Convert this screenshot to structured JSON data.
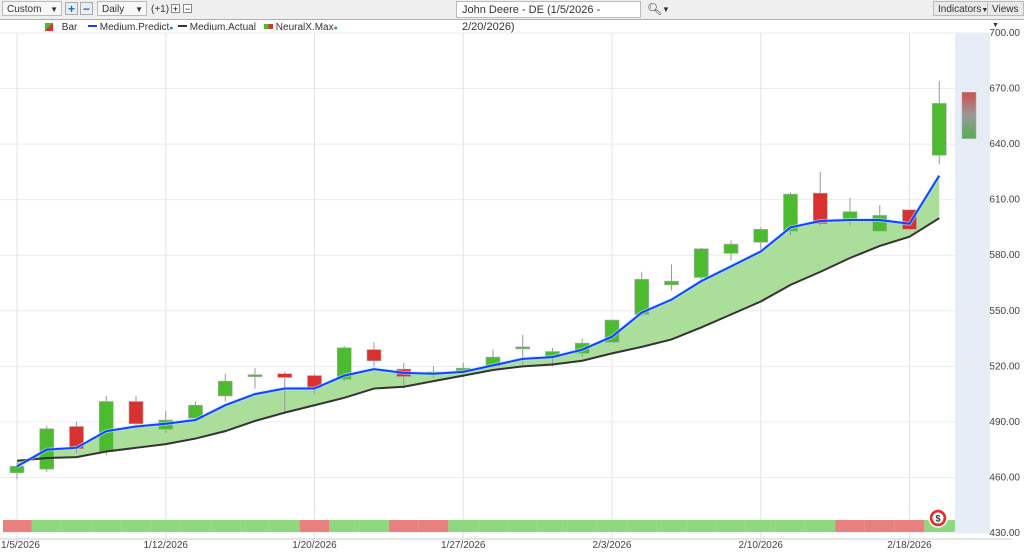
{
  "toolbar": {
    "range_select": "Custom",
    "interval_select": "Daily",
    "offset_label": "(+1)",
    "chart_title": "John Deere - DE (1/5/2026 - 2/20/2026)",
    "indicators_label": "Indicators",
    "views_label": "Views"
  },
  "legend": {
    "bar": "Bar",
    "predict": "Medium.Predict",
    "actual": "Medium.Actual",
    "neuralx": "NeuralX.Max"
  },
  "colors": {
    "up": "#4cbb30",
    "down": "#d93030",
    "predict": "#1e3cff",
    "actual": "#333333",
    "fill": "#a6dc96",
    "strip_green": "#90d880",
    "strip_red": "#e88080",
    "forecast_bg": "#e6edf6"
  },
  "chart_data": {
    "type": "candlestick",
    "title": "John Deere - DE (1/5/2026 - 2/20/2026)",
    "ylim": [
      430,
      700
    ],
    "yticks": [
      430,
      460,
      490,
      520,
      550,
      580,
      610,
      640,
      670,
      700
    ],
    "ytick_labels": [
      "430.00",
      "460.00",
      "490.00",
      "520.00",
      "550.00",
      "580.00",
      "610.00",
      "640.00",
      "670.00",
      "700.00"
    ],
    "xtick_labels": [
      {
        "label": "1/5/2026",
        "index": 0
      },
      {
        "label": "1/12/2026",
        "index": 5
      },
      {
        "label": "1/20/2026",
        "index": 10
      },
      {
        "label": "1/27/2026",
        "index": 15
      },
      {
        "label": "2/3/2026",
        "index": 20
      },
      {
        "label": "2/10/2026",
        "index": 25
      },
      {
        "label": "2/18/2026",
        "index": 30
      }
    ],
    "dates": [
      "1/5",
      "1/6",
      "1/7",
      "1/8",
      "1/9",
      "1/12",
      "1/13",
      "1/14",
      "1/15",
      "1/16",
      "1/20",
      "1/21",
      "1/22",
      "1/23",
      "1/26",
      "1/27",
      "1/28",
      "1/29",
      "1/30",
      "2/2",
      "2/3",
      "2/4",
      "2/5",
      "2/6",
      "2/9",
      "2/10",
      "2/11",
      "2/12",
      "2/13",
      "2/17",
      "2/18",
      "2/19"
    ],
    "ohlc": [
      [
        462.5,
        468,
        459,
        466
      ],
      [
        464.5,
        488,
        463,
        486.3
      ],
      [
        487.5,
        490,
        473,
        475.5
      ],
      [
        474,
        504,
        472,
        501
      ],
      [
        501,
        504,
        486,
        489
      ],
      [
        486,
        496,
        484,
        491
      ],
      [
        492,
        501,
        491,
        499
      ],
      [
        504,
        516,
        501,
        512
      ],
      [
        515,
        519,
        508,
        515.5
      ],
      [
        516,
        517,
        495,
        514
      ],
      [
        515,
        516,
        505,
        508.5
      ],
      [
        513,
        531,
        512,
        530
      ],
      [
        529,
        533,
        520,
        523
      ],
      [
        518.5,
        522,
        508,
        514.5
      ],
      [
        516.5,
        520,
        514,
        517
      ],
      [
        517.5,
        522,
        514,
        519
      ],
      [
        520,
        529,
        519,
        525
      ],
      [
        530,
        537,
        521,
        530.5
      ],
      [
        525,
        530,
        520,
        528
      ],
      [
        527,
        535,
        525,
        532.5
      ],
      [
        533,
        545,
        533,
        545
      ],
      [
        548,
        571,
        547,
        567
      ],
      [
        564,
        575,
        561,
        566
      ],
      [
        568,
        584,
        565,
        583.5
      ],
      [
        581,
        588,
        577,
        586
      ],
      [
        587,
        595,
        583,
        594
      ],
      [
        593,
        614,
        591,
        613
      ],
      [
        613.5,
        625,
        596,
        597
      ],
      [
        599.5,
        611,
        596,
        603.5
      ],
      [
        593,
        607,
        593,
        601.5
      ],
      [
        604.5,
        604.5,
        594,
        594
      ],
      [
        634,
        674,
        629,
        662
      ]
    ],
    "series": [
      {
        "name": "Medium.Predict",
        "values": [
          466,
          475,
          476,
          485,
          487.5,
          489,
          491,
          499,
          505,
          508,
          508,
          515,
          518.5,
          516.5,
          516,
          517,
          520.5,
          524,
          525,
          529,
          536,
          549,
          556,
          566,
          574,
          582,
          595,
          598.5,
          599,
          599,
          597,
          623
        ]
      },
      {
        "name": "Medium.Actual",
        "values": [
          469,
          470.5,
          471,
          474,
          476,
          478,
          481,
          485,
          490.5,
          495,
          499,
          503,
          508,
          509,
          512,
          515,
          518,
          520,
          521,
          523,
          527,
          530.5,
          534.5,
          541,
          548,
          555,
          564,
          571,
          578.5,
          585,
          590,
          600
        ]
      }
    ],
    "neuralx_forecast": {
      "date": "2/20",
      "low": 643,
      "high": 668
    },
    "signal_strip": [
      "red",
      "green",
      "green",
      "green",
      "green",
      "green",
      "green",
      "green",
      "green",
      "green",
      "red",
      "green",
      "green",
      "red",
      "red",
      "green",
      "green",
      "green",
      "green",
      "green",
      "green",
      "green",
      "green",
      "green",
      "green",
      "green",
      "green",
      "green",
      "red",
      "red",
      "red",
      "green"
    ]
  }
}
